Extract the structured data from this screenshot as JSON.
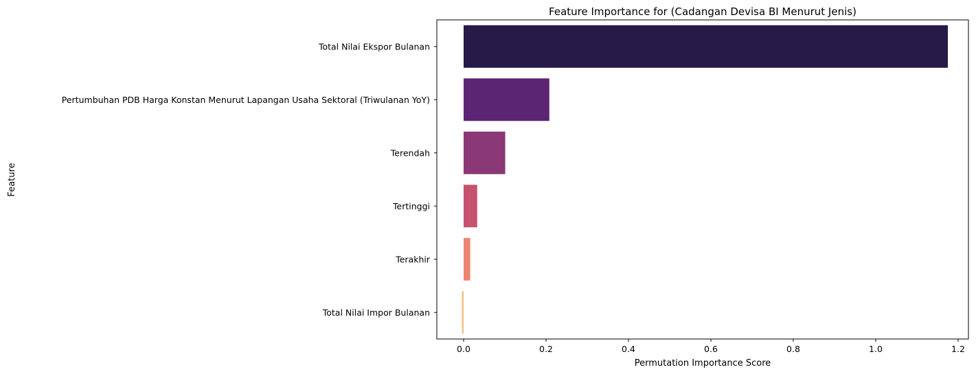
{
  "chart_data": {
    "type": "bar",
    "orientation": "horizontal",
    "title": "Feature Importance for (Cadangan Devisa BI Menurut Jenis)",
    "xlabel": "Permutation Importance Score",
    "ylabel": "Feature",
    "categories": [
      "Total Nilai Ekspor Bulanan",
      "Pertumbuhan PDB Harga Konstan Menurut Lapangan Usaha Sektoral (Triwulanan YoY)",
      "Terendah",
      "Tertinggi",
      "Terakhir",
      "Total Nilai Impor Bulanan"
    ],
    "values": [
      1.175,
      0.208,
      0.101,
      0.033,
      0.016,
      -0.004
    ],
    "colors": [
      "#261a48",
      "#5c2574",
      "#8b3877",
      "#c5536f",
      "#ec8570",
      "#f5bd80"
    ],
    "xlim": [
      -0.065,
      1.225
    ],
    "xticks": [
      0.0,
      0.2,
      0.4,
      0.6,
      0.8,
      1.0,
      1.2
    ],
    "xtick_labels": [
      "0.0",
      "0.2",
      "0.4",
      "0.6",
      "0.8",
      "1.0",
      "1.2"
    ],
    "grid": false,
    "legend": "none"
  }
}
